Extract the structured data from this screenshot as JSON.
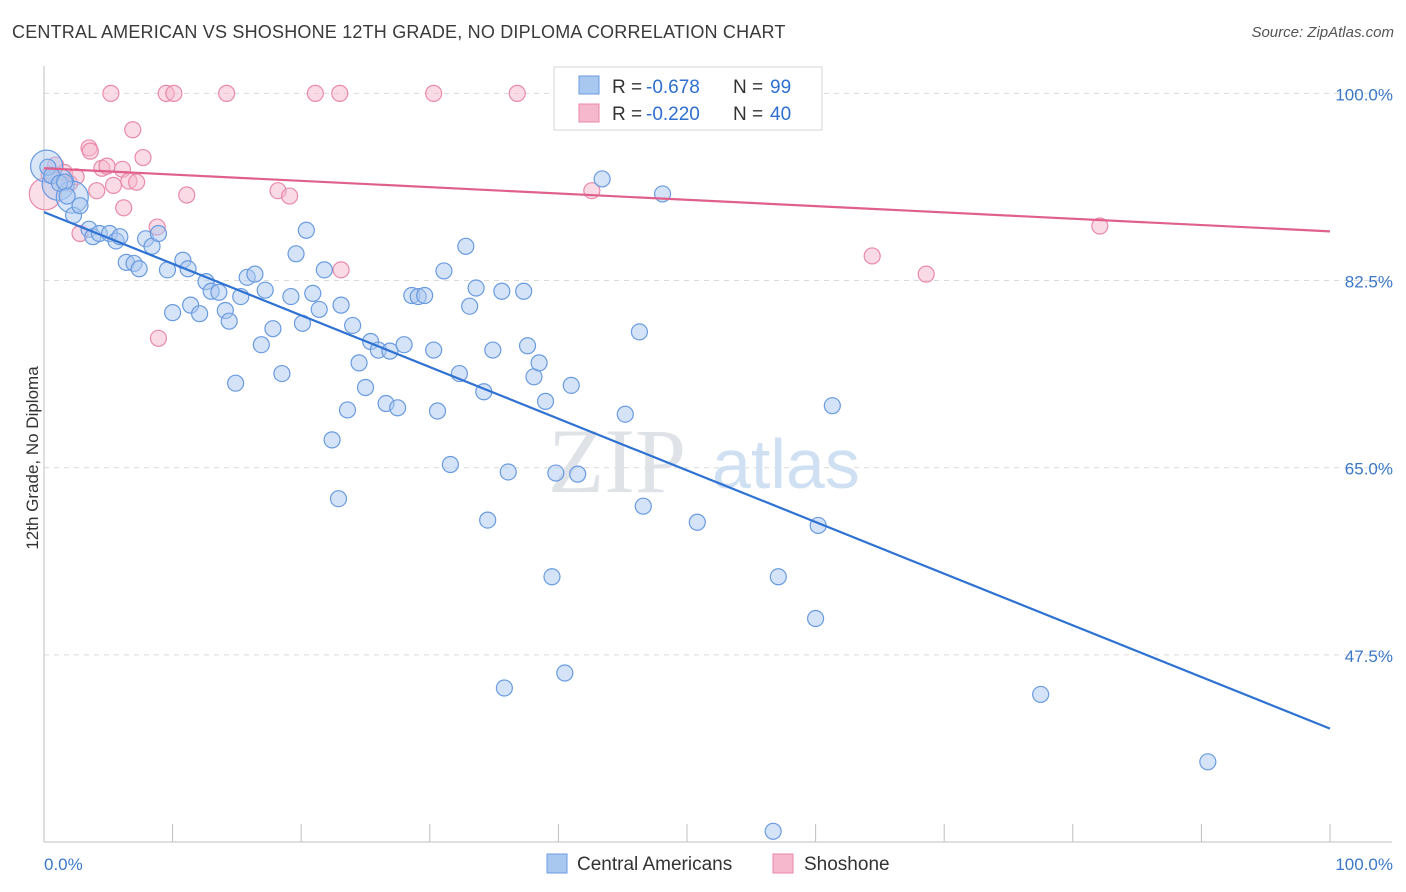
{
  "title": "CENTRAL AMERICAN VS SHOSHONE 12TH GRADE, NO DIPLOMA CORRELATION CHART",
  "source": "Source: ZipAtlas.com",
  "watermark": {
    "zip": "ZIP",
    "atlas": "atlas"
  },
  "colors": {
    "blue_fill": "#a9c8f0",
    "blue_stroke": "#6a9be0",
    "blue_line": "#2f72d2",
    "pink_fill": "#f5b8cc",
    "pink_stroke": "#e98aa8",
    "pink_line": "#e0608c",
    "grid": "#d9d9d9",
    "tick_text": "#3b78c8"
  },
  "legend": {
    "r_label": "R =",
    "n_label": "N =",
    "rows": [
      {
        "r": "-0.678",
        "n": "99",
        "series": "blue"
      },
      {
        "r": "-0.220",
        "n": "40",
        "series": "pink"
      }
    ]
  },
  "chart_data": {
    "type": "scatter",
    "title": "CENTRAL AMERICAN VS SHOSHONE 12TH GRADE, NO DIPLOMA CORRELATION CHART",
    "xlabel": "",
    "ylabel": "12th Grade, No Diploma",
    "xlim": [
      0,
      100
    ],
    "ylim": [
      30,
      102
    ],
    "x_tick_labels": [
      "0.0%",
      "100.0%"
    ],
    "y_ticks": [
      47.5,
      65.0,
      82.5,
      100.0
    ],
    "y_tick_labels": [
      "47.5%",
      "65.0%",
      "82.5%",
      "100.0%"
    ],
    "grid": true,
    "legend_position": "top-center",
    "series": [
      {
        "name": "Central Americans",
        "color": "#a9c8f0",
        "trend": {
          "x": [
            0,
            100
          ],
          "y": [
            88.9,
            40.6
          ]
        },
        "points": [
          [
            0.3,
            93.1
          ],
          [
            0.6,
            92.3
          ],
          [
            1.2,
            91.6
          ],
          [
            1.6,
            91.7
          ],
          [
            1.8,
            90.4
          ],
          [
            2.3,
            88.6
          ],
          [
            2.8,
            89.5
          ],
          [
            3.5,
            87.3
          ],
          [
            3.8,
            86.6
          ],
          [
            4.3,
            86.9
          ],
          [
            5.1,
            86.9
          ],
          [
            5.6,
            86.2
          ],
          [
            5.9,
            86.6
          ],
          [
            6.4,
            84.2
          ],
          [
            7.0,
            84.1
          ],
          [
            7.4,
            83.6
          ],
          [
            7.9,
            86.4
          ],
          [
            8.4,
            85.7
          ],
          [
            8.9,
            86.9
          ],
          [
            9.6,
            83.5
          ],
          [
            10.0,
            79.5
          ],
          [
            10.8,
            84.4
          ],
          [
            11.2,
            83.6
          ],
          [
            11.4,
            80.2
          ],
          [
            12.1,
            79.4
          ],
          [
            12.6,
            82.4
          ],
          [
            13.0,
            81.5
          ],
          [
            13.6,
            81.4
          ],
          [
            14.1,
            79.7
          ],
          [
            14.4,
            78.7
          ],
          [
            14.9,
            72.9
          ],
          [
            15.3,
            81.0
          ],
          [
            15.8,
            82.8
          ],
          [
            16.4,
            83.1
          ],
          [
            16.9,
            76.5
          ],
          [
            17.2,
            81.6
          ],
          [
            17.8,
            78.0
          ],
          [
            18.5,
            73.8
          ],
          [
            19.2,
            81.0
          ],
          [
            19.6,
            85.0
          ],
          [
            20.1,
            78.5
          ],
          [
            20.4,
            87.2
          ],
          [
            20.9,
            81.3
          ],
          [
            21.4,
            79.8
          ],
          [
            21.8,
            83.5
          ],
          [
            22.4,
            67.6
          ],
          [
            22.9,
            62.1
          ],
          [
            23.1,
            80.2
          ],
          [
            23.6,
            70.4
          ],
          [
            24.0,
            78.3
          ],
          [
            24.5,
            74.8
          ],
          [
            25.0,
            72.5
          ],
          [
            25.4,
            76.8
          ],
          [
            26.0,
            76.0
          ],
          [
            26.6,
            71.0
          ],
          [
            26.9,
            75.9
          ],
          [
            27.5,
            70.6
          ],
          [
            28.0,
            76.5
          ],
          [
            28.6,
            81.1
          ],
          [
            29.1,
            81.0
          ],
          [
            29.6,
            81.1
          ],
          [
            30.3,
            76.0
          ],
          [
            30.6,
            70.3
          ],
          [
            31.1,
            83.4
          ],
          [
            31.6,
            65.3
          ],
          [
            32.3,
            73.8
          ],
          [
            32.8,
            85.7
          ],
          [
            33.1,
            80.1
          ],
          [
            33.6,
            81.8
          ],
          [
            34.2,
            72.1
          ],
          [
            34.5,
            60.1
          ],
          [
            34.9,
            76.0
          ],
          [
            35.6,
            81.5
          ],
          [
            35.8,
            44.4
          ],
          [
            36.1,
            64.6
          ],
          [
            37.3,
            81.5
          ],
          [
            37.6,
            76.4
          ],
          [
            38.1,
            73.5
          ],
          [
            38.5,
            74.8
          ],
          [
            39.0,
            71.2
          ],
          [
            39.5,
            54.8
          ],
          [
            39.8,
            64.5
          ],
          [
            40.5,
            45.8
          ],
          [
            41.0,
            72.7
          ],
          [
            41.5,
            64.4
          ],
          [
            43.4,
            92.0
          ],
          [
            45.2,
            70.0
          ],
          [
            46.3,
            77.7
          ],
          [
            46.6,
            61.4
          ],
          [
            48.1,
            90.6
          ],
          [
            48.8,
            100.0
          ],
          [
            50.8,
            59.9
          ],
          [
            56.7,
            31.0
          ],
          [
            57.1,
            54.8
          ],
          [
            60.2,
            59.6
          ],
          [
            60.0,
            50.9
          ],
          [
            61.3,
            70.8
          ],
          [
            77.5,
            43.8
          ],
          [
            90.5,
            37.5
          ]
        ],
        "big_points": [
          [
            0.2,
            93.2
          ],
          [
            1.1,
            91.5
          ],
          [
            2.2,
            90.3
          ]
        ]
      },
      {
        "name": "Shoshone",
        "color": "#f5b8cc",
        "trend": {
          "x": [
            0,
            100
          ],
          "y": [
            93.0,
            87.1
          ]
        },
        "points": [
          [
            0.4,
            92.4
          ],
          [
            0.9,
            93.3
          ],
          [
            1.6,
            92.6
          ],
          [
            2.0,
            91.6
          ],
          [
            2.5,
            92.2
          ],
          [
            2.8,
            86.9
          ],
          [
            3.5,
            94.9
          ],
          [
            3.6,
            94.6
          ],
          [
            4.1,
            90.9
          ],
          [
            4.5,
            93.0
          ],
          [
            4.9,
            93.2
          ],
          [
            5.2,
            100.0
          ],
          [
            5.4,
            91.4
          ],
          [
            6.1,
            92.9
          ],
          [
            6.2,
            89.3
          ],
          [
            6.6,
            91.8
          ],
          [
            6.9,
            96.6
          ],
          [
            7.2,
            91.7
          ],
          [
            7.7,
            94.0
          ],
          [
            8.8,
            87.5
          ],
          [
            8.9,
            77.1
          ],
          [
            9.5,
            100.0
          ],
          [
            10.1,
            100.0
          ],
          [
            11.1,
            90.5
          ],
          [
            14.2,
            100.0
          ],
          [
            18.2,
            90.9
          ],
          [
            19.1,
            90.4
          ],
          [
            21.1,
            100.0
          ],
          [
            23.0,
            100.0
          ],
          [
            23.1,
            83.5
          ],
          [
            30.3,
            100.0
          ],
          [
            36.8,
            100.0
          ],
          [
            42.6,
            90.9
          ],
          [
            64.4,
            84.8
          ],
          [
            68.6,
            83.1
          ],
          [
            82.1,
            87.6
          ]
        ],
        "big_points": [
          [
            0.1,
            90.6
          ]
        ]
      }
    ]
  },
  "bottom_legend": [
    {
      "label": "Central Americans",
      "series": "blue"
    },
    {
      "label": "Shoshone",
      "series": "pink"
    }
  ]
}
